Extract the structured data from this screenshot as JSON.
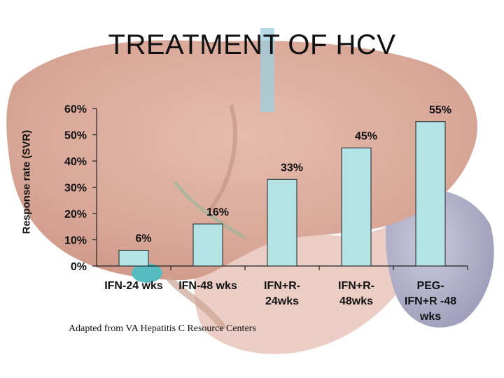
{
  "slide": {
    "title": "TREATMENT OF HCV",
    "source": "Adapted from VA Hepatitis C Resource Centers"
  },
  "colors": {
    "bar_fill": "#b4e3e6",
    "bar_stroke": "#222222",
    "text": "#111111"
  },
  "chart_data": {
    "type": "bar",
    "title": "",
    "ylabel": "Response rate (SVR)",
    "xlabel": "",
    "ylim": [
      0,
      60
    ],
    "yticks": [
      "0%",
      "10%",
      "20%",
      "30%",
      "40%",
      "50%",
      "60%"
    ],
    "categories": [
      [
        "IFN-24 wks"
      ],
      [
        "IFN-48 wks"
      ],
      [
        "IFN+R-",
        "24wks"
      ],
      [
        "IFN+R-",
        "48wks"
      ],
      [
        "PEG-",
        "IFN+R -48",
        "wks"
      ]
    ],
    "values": [
      6,
      16,
      33,
      45,
      55
    ],
    "data_labels": [
      "6%",
      "16%",
      "33%",
      "45%",
      "55%"
    ],
    "grid": false,
    "legend": "none"
  }
}
